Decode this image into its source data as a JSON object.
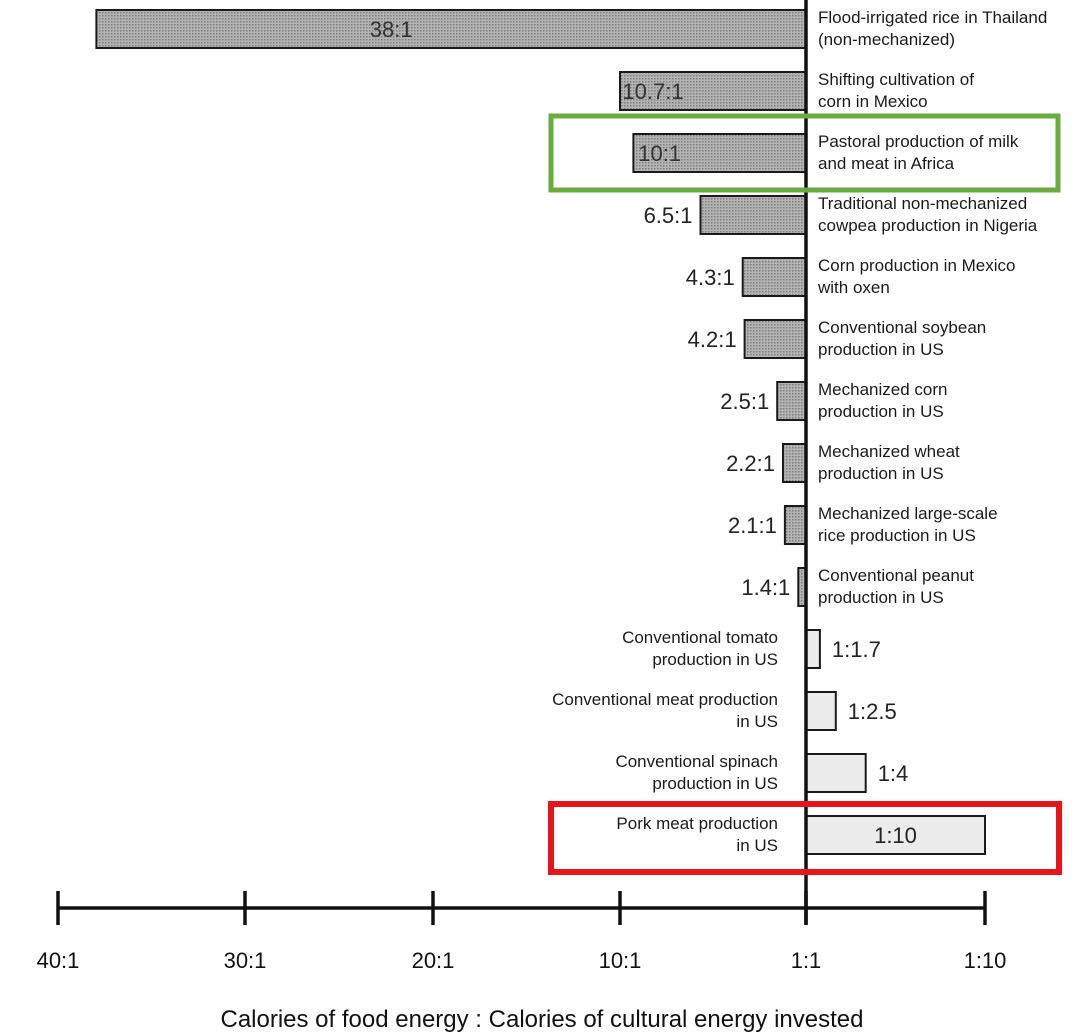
{
  "colors": {
    "positive_bar": "#9a9a9a",
    "negative_bar": "#ececec",
    "bar_stroke": "#1a1a1a",
    "highlight_green": "#6aab3e",
    "highlight_red": "#e8141c"
  },
  "chart_data": {
    "type": "bar",
    "orientation": "horizontal",
    "xlabel": "Calories of food energy : Calories of cultural energy invested",
    "x_ticks": [
      "40:1",
      "30:1",
      "20:1",
      "10:1",
      "1:1",
      "1:10"
    ],
    "x_range_note": "diverging axis centered at 1:1; left side food:energy ratio up to 40:1, right side 1:1 to 1:10",
    "categories": [
      "Flood-irrigated rice in Thailand (non-mechanized)",
      "Shifting cultivation of corn in Mexico",
      "Pastoral production of milk and meat in Africa",
      "Traditional non-mechanized cowpea production in Nigeria",
      "Corn production in Mexico with oxen",
      "Conventional soybean production in US",
      "Mechanized corn production in US",
      "Mechanized wheat production in US",
      "Mechanized large-scale rice production in US",
      "Conventional peanut production in US",
      "Conventional tomato production in US",
      "Conventional meat production in US",
      "Conventional spinach production in US",
      "Pork meat production in US"
    ],
    "label_lines": [
      [
        "Flood-irrigated rice in Thailand",
        "(non-mechanized)"
      ],
      [
        "Shifting cultivation of",
        "corn in Mexico"
      ],
      [
        "Pastoral production of milk",
        "and meat in Africa"
      ],
      [
        "Traditional non-mechanized",
        "cowpea production in Nigeria"
      ],
      [
        "Corn production in Mexico",
        "with oxen"
      ],
      [
        "Conventional soybean",
        "production in US"
      ],
      [
        "Mechanized corn",
        "production in US"
      ],
      [
        "Mechanized wheat",
        "production in US"
      ],
      [
        "Mechanized large-scale",
        "rice production in US"
      ],
      [
        "Conventional peanut",
        "production in US"
      ],
      [
        "Conventional tomato",
        "production in US"
      ],
      [
        "Conventional meat production",
        "in US"
      ],
      [
        "Conventional spinach",
        "production in US"
      ],
      [
        "Pork meat production",
        "in US"
      ]
    ],
    "ratio_labels": [
      "38:1",
      "10.7:1",
      "10:1",
      "6.5:1",
      "4.3:1",
      "4.2:1",
      "2.5:1",
      "2.2:1",
      "2.1:1",
      "1.4:1",
      "1:1.7",
      "1:2.5",
      "1:4",
      "1:10"
    ],
    "output_per_input": [
      38,
      10.7,
      10,
      6.5,
      4.3,
      4.2,
      2.5,
      2.2,
      2.1,
      1.4,
      0.588,
      0.4,
      0.25,
      0.1
    ],
    "highlighted": {
      "green": "Pastoral production of milk and meat in Africa",
      "red": "Pork meat production in US"
    }
  }
}
